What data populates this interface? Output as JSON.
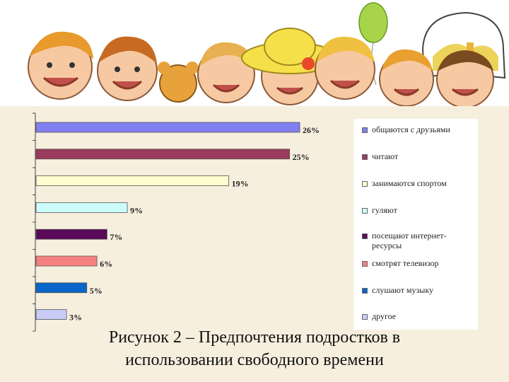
{
  "chart_data": {
    "type": "bar",
    "orientation": "horizontal",
    "categories": [
      "общаются с друзьями",
      "читают",
      "занимаются спортом",
      "гуляют",
      "посещают интернет-ресурсы",
      "смотрят телевизор",
      "слушают музыку",
      "другое"
    ],
    "values": [
      26,
      25,
      19,
      9,
      7,
      6,
      5,
      3
    ],
    "value_labels": [
      "26%",
      "25%",
      "19%",
      "9%",
      "7%",
      "6%",
      "5%",
      "3%"
    ],
    "colors": [
      "#8080f0",
      "#9a3a5c",
      "#fdfdd0",
      "#ccfcfc",
      "#5a0a5a",
      "#f58080",
      "#0a66c8",
      "#c8ccf6"
    ],
    "legend": {
      "position": "right",
      "lines": [
        [
          "общаются с друзьями"
        ],
        [
          "читают"
        ],
        [
          "занимаются спортом"
        ],
        [
          "гуляют"
        ],
        [
          "посещают интернет-",
          "ресурсы"
        ],
        [
          "смотрят телевизор"
        ],
        [
          "слушают музыку"
        ],
        [
          "другое"
        ]
      ]
    },
    "xlim": [
      0,
      26
    ],
    "grid": false
  },
  "caption": {
    "line1": "Рисунок 2 – Предпочтения подростков в",
    "line2": "использовании свободного времени"
  }
}
